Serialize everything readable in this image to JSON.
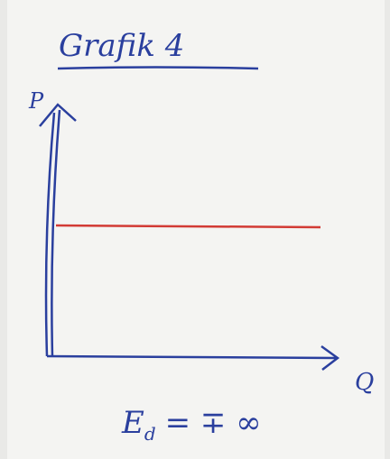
{
  "header": {
    "title": "Grafik 4"
  },
  "axes": {
    "y_label": "P",
    "x_label": "Q"
  },
  "equation": {
    "symbol": "E",
    "subscript": "d",
    "rest": "= ∓ ∞"
  }
}
